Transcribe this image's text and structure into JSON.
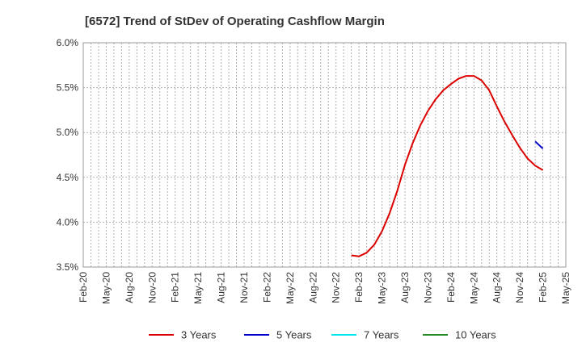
{
  "chart_data": {
    "type": "line",
    "title": "[6572]  Trend of StDev of Operating Cashflow Margin",
    "xlabel": "",
    "ylabel": "",
    "x_tick_labels": [
      "Feb-20",
      "May-20",
      "Aug-20",
      "Nov-20",
      "Feb-21",
      "May-21",
      "Aug-21",
      "Nov-21",
      "Feb-22",
      "May-22",
      "Aug-22",
      "Nov-22",
      "Feb-23",
      "May-23",
      "Aug-23",
      "Nov-23",
      "Feb-24",
      "May-24",
      "Aug-24",
      "Nov-24",
      "Feb-25",
      "May-25"
    ],
    "y_tick_labels": [
      "3.5%",
      "4.0%",
      "4.5%",
      "5.0%",
      "5.5%",
      "6.0%"
    ],
    "y_ticks": [
      3.5,
      4.0,
      4.5,
      5.0,
      5.5,
      6.0
    ],
    "ylim": [
      3.5,
      6.0
    ],
    "grid": true,
    "legend_position": "bottom",
    "colors": {
      "3 Years": "#dd0000",
      "5 Years": "#0000cc",
      "7 Years": "#00e5ee",
      "10 Years": "#228b22"
    },
    "series": [
      {
        "name": "3 Years",
        "color": "#dd0000",
        "points": [
          [
            "Jan-23",
            3.63
          ],
          [
            "Feb-23",
            3.62
          ],
          [
            "Mar-23",
            3.66
          ],
          [
            "Apr-23",
            3.75
          ],
          [
            "May-23",
            3.9
          ],
          [
            "Jun-23",
            4.1
          ],
          [
            "Jul-23",
            4.35
          ],
          [
            "Aug-23",
            4.64
          ],
          [
            "Sep-23",
            4.88
          ],
          [
            "Oct-23",
            5.08
          ],
          [
            "Nov-23",
            5.24
          ],
          [
            "Dec-23",
            5.37
          ],
          [
            "Jan-24",
            5.47
          ],
          [
            "Feb-24",
            5.54
          ],
          [
            "Mar-24",
            5.6
          ],
          [
            "Apr-24",
            5.63
          ],
          [
            "May-24",
            5.63
          ],
          [
            "Jun-24",
            5.58
          ],
          [
            "Jul-24",
            5.47
          ],
          [
            "Aug-24",
            5.29
          ],
          [
            "Sep-24",
            5.12
          ],
          [
            "Oct-24",
            4.97
          ],
          [
            "Nov-24",
            4.83
          ],
          [
            "Dec-24",
            4.71
          ],
          [
            "Jan-25",
            4.63
          ],
          [
            "Feb-25",
            4.58
          ]
        ]
      },
      {
        "name": "5 Years",
        "color": "#0000cc",
        "points": [
          [
            "Jan-25",
            4.9
          ],
          [
            "Feb-25",
            4.82
          ]
        ]
      },
      {
        "name": "7 Years",
        "color": "#00e5ee",
        "points": []
      },
      {
        "name": "10 Years",
        "color": "#228b22",
        "points": []
      }
    ]
  }
}
